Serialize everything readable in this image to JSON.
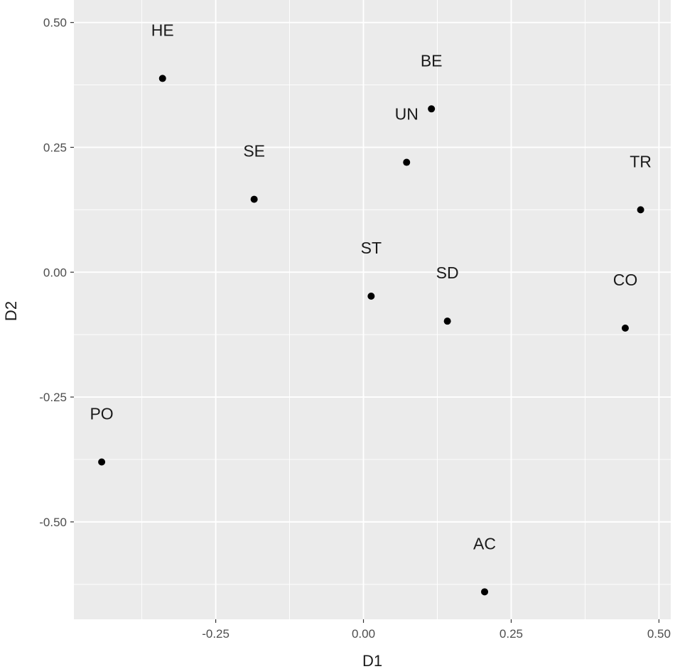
{
  "chart_data": {
    "type": "scatter",
    "xlabel": "D1",
    "ylabel": "D2",
    "xlim": [
      -0.49,
      0.52
    ],
    "ylim": [
      -0.695,
      0.545
    ],
    "x_ticks": [
      -0.25,
      0.0,
      0.25,
      0.5
    ],
    "x_tick_labels": [
      "-0.25",
      "0.00",
      "0.25",
      "0.50"
    ],
    "y_ticks": [
      -0.5,
      -0.25,
      0.0,
      0.25,
      0.5
    ],
    "y_tick_labels": [
      "-0.50",
      "-0.25",
      "0.00",
      "0.25",
      "0.50"
    ],
    "grid": true,
    "legend": "none",
    "colors": {
      "panel_background": "#ebebeb",
      "grid": "#ffffff",
      "point": "#000000"
    },
    "points": [
      {
        "label": "HE",
        "x": -0.34,
        "y": 0.388
      },
      {
        "label": "BE",
        "x": 0.115,
        "y": 0.327
      },
      {
        "label": "UN",
        "x": 0.073,
        "y": 0.22
      },
      {
        "label": "SE",
        "x": -0.185,
        "y": 0.146
      },
      {
        "label": "TR",
        "x": 0.469,
        "y": 0.125
      },
      {
        "label": "ST",
        "x": 0.013,
        "y": -0.048
      },
      {
        "label": "SD",
        "x": 0.142,
        "y": -0.098
      },
      {
        "label": "CO",
        "x": 0.443,
        "y": -0.112
      },
      {
        "label": "PO",
        "x": -0.443,
        "y": -0.38
      },
      {
        "label": "AC",
        "x": 0.205,
        "y": -0.64
      }
    ]
  }
}
